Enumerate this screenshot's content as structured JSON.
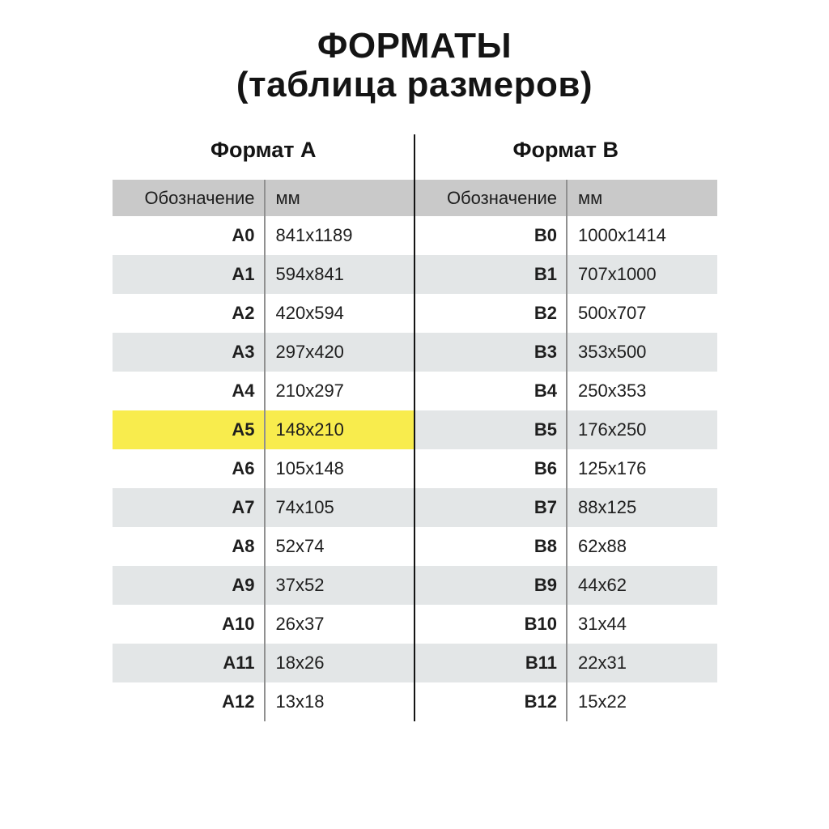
{
  "title": "ФОРМАТЫ",
  "subtitle": "(таблица размеров)",
  "columns": {
    "designation": "Обозначение",
    "mm": "мм"
  },
  "tables": [
    {
      "name": "Формат А",
      "rows": [
        {
          "designation": "A0",
          "mm": "841x1189",
          "highlight": false
        },
        {
          "designation": "A1",
          "mm": "594x841",
          "highlight": false
        },
        {
          "designation": "A2",
          "mm": "420x594",
          "highlight": false
        },
        {
          "designation": "A3",
          "mm": "297x420",
          "highlight": false
        },
        {
          "designation": "A4",
          "mm": "210x297",
          "highlight": false
        },
        {
          "designation": "A5",
          "mm": "148x210",
          "highlight": true
        },
        {
          "designation": "A6",
          "mm": "105x148",
          "highlight": false
        },
        {
          "designation": "A7",
          "mm": "74x105",
          "highlight": false
        },
        {
          "designation": "A8",
          "mm": "52x74",
          "highlight": false
        },
        {
          "designation": "A9",
          "mm": "37x52",
          "highlight": false
        },
        {
          "designation": "A10",
          "mm": "26x37",
          "highlight": false
        },
        {
          "designation": "A11",
          "mm": "18x26",
          "highlight": false
        },
        {
          "designation": "A12",
          "mm": "13x18",
          "highlight": false
        }
      ]
    },
    {
      "name": "Формат В",
      "rows": [
        {
          "designation": "B0",
          "mm": "1000x1414",
          "highlight": false
        },
        {
          "designation": "B1",
          "mm": "707x1000",
          "highlight": false
        },
        {
          "designation": "B2",
          "mm": "500x707",
          "highlight": false
        },
        {
          "designation": "B3",
          "mm": "353x500",
          "highlight": false
        },
        {
          "designation": "B4",
          "mm": "250x353",
          "highlight": false
        },
        {
          "designation": "B5",
          "mm": "176x250",
          "highlight": false
        },
        {
          "designation": "B6",
          "mm": "125x176",
          "highlight": false
        },
        {
          "designation": "B7",
          "mm": "88x125",
          "highlight": false
        },
        {
          "designation": "B8",
          "mm": "62x88",
          "highlight": false
        },
        {
          "designation": "B9",
          "mm": "44x62",
          "highlight": false
        },
        {
          "designation": "B10",
          "mm": "31x44",
          "highlight": false
        },
        {
          "designation": "B11",
          "mm": "22x31",
          "highlight": false
        },
        {
          "designation": "B12",
          "mm": "15x22",
          "highlight": false
        }
      ]
    }
  ],
  "colors": {
    "header_row_bg": "#c9c9c9",
    "stripe_bg": "#e3e6e7",
    "highlight_bg": "#f8ec4d",
    "divider_mid": "#141414",
    "divider_inner": "#909090",
    "text": "#1e1e1e"
  }
}
